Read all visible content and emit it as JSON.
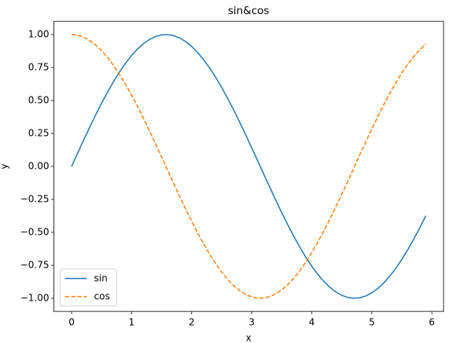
{
  "chart_data": {
    "type": "line",
    "title": "sin&cos",
    "x_label": "x",
    "y_label": "y",
    "x": [
      0,
      0.1,
      0.2,
      0.3,
      0.4,
      0.5,
      0.6,
      0.7,
      0.8,
      0.9,
      1.0,
      1.1,
      1.2,
      1.3,
      1.4,
      1.5,
      1.6,
      1.7,
      1.8,
      1.9,
      2.0,
      2.1,
      2.2,
      2.3,
      2.4,
      2.5,
      2.6,
      2.7,
      2.8,
      2.9,
      3.0,
      3.1,
      3.2,
      3.3,
      3.4,
      3.5,
      3.6,
      3.7,
      3.8,
      3.9,
      4.0,
      4.1,
      4.2,
      4.3,
      4.4,
      4.5,
      4.6,
      4.7,
      4.8,
      4.9,
      5.0,
      5.1,
      5.2,
      5.3,
      5.4,
      5.5,
      5.6,
      5.7,
      5.8,
      5.9
    ],
    "series": [
      {
        "name": "sin",
        "color": "#1f77b4",
        "dash": "solid",
        "values": [
          0,
          0.0998,
          0.1987,
          0.2955,
          0.3894,
          0.4794,
          0.5646,
          0.6442,
          0.7174,
          0.7833,
          0.8415,
          0.8912,
          0.932,
          0.9636,
          0.9854,
          0.9975,
          0.9996,
          0.9917,
          0.9738,
          0.9463,
          0.9093,
          0.8632,
          0.8085,
          0.7457,
          0.6755,
          0.5985,
          0.5155,
          0.4274,
          0.335,
          0.2392,
          0.1411,
          0.0416,
          -0.0584,
          -0.1577,
          -0.2555,
          -0.3508,
          -0.4425,
          -0.5298,
          -0.6119,
          -0.6878,
          -0.7568,
          -0.8183,
          -0.8716,
          -0.9162,
          -0.9516,
          -0.9775,
          -0.9937,
          -0.9999,
          -0.9962,
          -0.9825,
          -0.9589,
          -0.9258,
          -0.8835,
          -0.8323,
          -0.7728,
          -0.7055,
          -0.6313,
          -0.5507,
          -0.4646,
          -0.3739
        ]
      },
      {
        "name": "cos",
        "color": "#ff7f0e",
        "dash": "dashed",
        "values": [
          1,
          0.995,
          0.9801,
          0.9553,
          0.9211,
          0.8776,
          0.8253,
          0.7648,
          0.6967,
          0.6216,
          0.5403,
          0.4536,
          0.3624,
          0.2675,
          0.17,
          0.0707,
          -0.0292,
          -0.1288,
          -0.2272,
          -0.3233,
          -0.4161,
          -0.5048,
          -0.5885,
          -0.6663,
          -0.7374,
          -0.8011,
          -0.8569,
          -0.9041,
          -0.9422,
          -0.971,
          -0.99,
          -0.9991,
          -0.9983,
          -0.9875,
          -0.9668,
          -0.9365,
          -0.8968,
          -0.8481,
          -0.791,
          -0.7259,
          -0.6536,
          -0.5748,
          -0.4903,
          -0.4008,
          -0.3073,
          -0.2108,
          -0.1122,
          -0.0124,
          0.0875,
          0.1865,
          0.2837,
          0.378,
          0.4685,
          0.5544,
          0.6347,
          0.7087,
          0.7756,
          0.8347,
          0.8855,
          0.9275
        ]
      }
    ],
    "xlim": [
      -0.295,
      6.195
    ],
    "xticks": [
      0,
      1,
      2,
      3,
      4,
      5,
      6
    ],
    "ylim": [
      -1.1,
      1.1
    ],
    "yticks": [
      {
        "value": -1,
        "label": "−1.00"
      },
      {
        "value": -0.75,
        "label": "−0.75"
      },
      {
        "value": -0.5,
        "label": "−0.50"
      },
      {
        "value": -0.25,
        "label": "−0.25"
      },
      {
        "value": 0,
        "label": "0.00"
      },
      {
        "value": 0.25,
        "label": "0.25"
      },
      {
        "value": 0.5,
        "label": "0.50"
      },
      {
        "value": 0.75,
        "label": "0.75"
      },
      {
        "value": 1,
        "label": "1.00"
      }
    ],
    "grid": false,
    "legend": "lower left"
  }
}
